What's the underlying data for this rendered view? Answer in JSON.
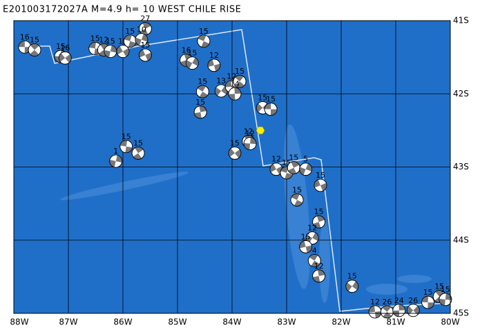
{
  "map": {
    "title": "E201003172027A  M=4.9  h= 10 WEST CHILE RISE",
    "lon_ticks": [
      {
        "value": 88,
        "label": "88W"
      },
      {
        "value": 87,
        "label": "87W"
      },
      {
        "value": 86,
        "label": "86W"
      },
      {
        "value": 85,
        "label": "85W"
      },
      {
        "value": 84,
        "label": "84W"
      },
      {
        "value": 83,
        "label": "83W"
      },
      {
        "value": 82,
        "label": "82W"
      },
      {
        "value": 81,
        "label": "81W"
      },
      {
        "value": 80,
        "label": "80W"
      }
    ],
    "lat_ticks": [
      {
        "value": 41,
        "label": "41S"
      },
      {
        "value": 42,
        "label": "42S"
      },
      {
        "value": 43,
        "label": "43S"
      },
      {
        "value": 44,
        "label": "44S"
      },
      {
        "value": 45,
        "label": "45S"
      }
    ],
    "lonlim": [
      88,
      80
    ],
    "latlim": [
      41,
      45
    ],
    "epicenter": {
      "lon": 83.48,
      "lat": 42.5
    },
    "events": [
      {
        "label": "16",
        "lon": 87.8,
        "lat": 41.36
      },
      {
        "label": "15",
        "lon": 87.62,
        "lat": 41.4
      },
      {
        "label": "15",
        "lon": 87.14,
        "lat": 41.49
      },
      {
        "label": "16",
        "lon": 87.06,
        "lat": 41.51
      },
      {
        "label": "15",
        "lon": 86.51,
        "lat": 41.38
      },
      {
        "label": "12",
        "lon": 86.35,
        "lat": 41.4
      },
      {
        "label": "15",
        "lon": 86.23,
        "lat": 41.42
      },
      {
        "label": "15",
        "lon": 86.0,
        "lat": 41.42
      },
      {
        "label": "15",
        "lon": 85.87,
        "lat": 41.28
      },
      {
        "label": "27",
        "lon": 85.59,
        "lat": 41.11
      },
      {
        "label": "10",
        "lon": 85.66,
        "lat": 41.26
      },
      {
        "label": "15",
        "lon": 85.59,
        "lat": 41.47
      },
      {
        "label": "15",
        "lon": 84.52,
        "lat": 41.28
      },
      {
        "label": "16",
        "lon": 84.84,
        "lat": 41.54
      },
      {
        "label": "15",
        "lon": 84.73,
        "lat": 41.58
      },
      {
        "label": "12",
        "lon": 84.33,
        "lat": 41.61
      },
      {
        "label": "15",
        "lon": 84.54,
        "lat": 41.97
      },
      {
        "label": "15",
        "lon": 84.58,
        "lat": 42.25
      },
      {
        "label": "13",
        "lon": 84.2,
        "lat": 41.96
      },
      {
        "label": "12",
        "lon": 84.01,
        "lat": 41.9
      },
      {
        "label": "15",
        "lon": 83.86,
        "lat": 41.83
      },
      {
        "label": "14",
        "lon": 83.95,
        "lat": 42.0
      },
      {
        "label": "15",
        "lon": 83.44,
        "lat": 42.19
      },
      {
        "label": "15",
        "lon": 83.29,
        "lat": 42.21
      },
      {
        "label": "12",
        "lon": 83.7,
        "lat": 42.65
      },
      {
        "label": "12",
        "lon": 83.67,
        "lat": 42.68
      },
      {
        "label": "15",
        "lon": 83.95,
        "lat": 42.81
      },
      {
        "label": "15",
        "lon": 85.94,
        "lat": 42.72
      },
      {
        "label": "15",
        "lon": 85.72,
        "lat": 42.81
      },
      {
        "label": "1",
        "lon": 86.13,
        "lat": 42.92
      },
      {
        "label": "12",
        "lon": 83.19,
        "lat": 43.03
      },
      {
        "label": "15",
        "lon": 83.0,
        "lat": 43.08
      },
      {
        "label": "15",
        "lon": 82.87,
        "lat": 43.01
      },
      {
        "label": "5",
        "lon": 82.65,
        "lat": 43.03
      },
      {
        "label": "15",
        "lon": 82.38,
        "lat": 43.25
      },
      {
        "label": "15",
        "lon": 82.81,
        "lat": 43.45
      },
      {
        "label": "15",
        "lon": 82.41,
        "lat": 43.75
      },
      {
        "label": "12",
        "lon": 82.53,
        "lat": 43.97
      },
      {
        "label": "15",
        "lon": 82.65,
        "lat": 44.09
      },
      {
        "label": "4",
        "lon": 82.49,
        "lat": 44.28
      },
      {
        "label": "12",
        "lon": 82.41,
        "lat": 44.49
      },
      {
        "label": "15",
        "lon": 81.8,
        "lat": 44.63
      },
      {
        "label": "12",
        "lon": 81.38,
        "lat": 44.98
      },
      {
        "label": "26",
        "lon": 81.16,
        "lat": 44.98
      },
      {
        "label": "24",
        "lon": 80.94,
        "lat": 44.96
      },
      {
        "label": "26",
        "lon": 80.68,
        "lat": 44.96
      },
      {
        "label": "15",
        "lon": 80.41,
        "lat": 44.85
      },
      {
        "label": "15",
        "lon": 80.2,
        "lat": 44.77
      },
      {
        "label": "15",
        "lon": 80.09,
        "lat": 44.81
      }
    ]
  }
}
